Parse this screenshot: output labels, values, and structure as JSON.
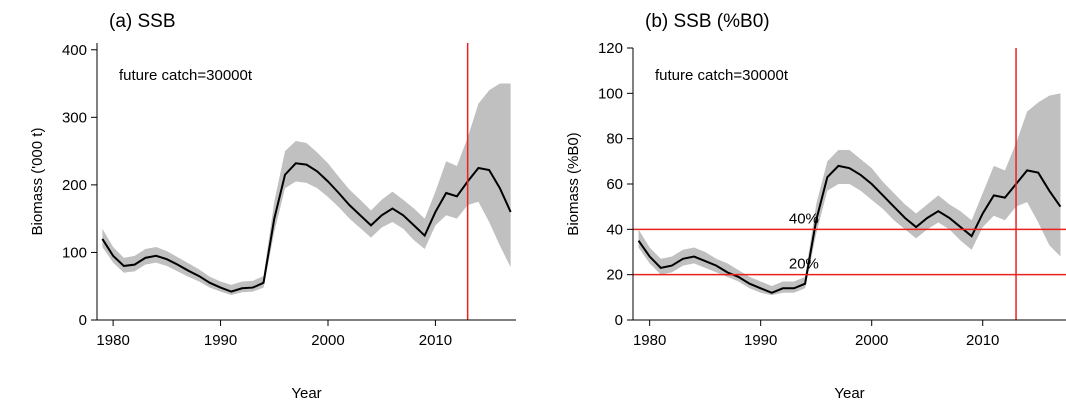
{
  "chart_data": [
    {
      "type": "line",
      "title": "(a) SSB",
      "xlabel": "Year",
      "ylabel": "Biomass ('000 t)",
      "annotation": "future catch=30000t",
      "x": [
        1979,
        1980,
        1981,
        1982,
        1983,
        1984,
        1985,
        1986,
        1987,
        1988,
        1989,
        1990,
        1991,
        1992,
        1993,
        1994,
        1995,
        1996,
        1997,
        1998,
        1999,
        2000,
        2001,
        2002,
        2003,
        2004,
        2005,
        2006,
        2007,
        2008,
        2009,
        2010,
        2011,
        2012,
        2013,
        2014,
        2015,
        2016,
        2017
      ],
      "series": [
        {
          "color": "#000000",
          "values": [
            120,
            95,
            80,
            82,
            92,
            95,
            90,
            82,
            73,
            65,
            55,
            48,
            42,
            47,
            48,
            55,
            150,
            215,
            232,
            230,
            220,
            205,
            188,
            170,
            155,
            140,
            155,
            165,
            155,
            140,
            125,
            160,
            188,
            183,
            205,
            225,
            222,
            195,
            160
          ]
        }
      ],
      "band": {
        "color": "#c0c0c0",
        "lower": [
          108,
          85,
          70,
          72,
          82,
          85,
          80,
          72,
          64,
          57,
          48,
          42,
          37,
          41,
          42,
          48,
          130,
          195,
          205,
          203,
          195,
          182,
          167,
          150,
          136,
          122,
          137,
          145,
          135,
          118,
          105,
          140,
          155,
          150,
          170,
          175,
          145,
          110,
          78
        ],
        "upper": [
          135,
          108,
          92,
          95,
          105,
          108,
          102,
          93,
          84,
          75,
          64,
          57,
          52,
          57,
          58,
          65,
          175,
          250,
          265,
          262,
          248,
          232,
          212,
          193,
          178,
          162,
          178,
          190,
          178,
          165,
          150,
          190,
          235,
          228,
          270,
          320,
          340,
          350,
          350
        ]
      },
      "vlines": [
        2013
      ],
      "ref_color": "#e8231f",
      "xlim": [
        1978.5,
        2017.5
      ],
      "xticks": [
        1980,
        1990,
        2000,
        2010
      ],
      "ylim": [
        0,
        410
      ],
      "yticks": [
        0,
        100,
        200,
        300,
        400
      ]
    },
    {
      "type": "line",
      "title": "(b) SSB (%B0)",
      "xlabel": "Year",
      "ylabel": "Biomass (%B0)",
      "annotation": "future catch=30000t",
      "x": [
        1979,
        1980,
        1981,
        1982,
        1983,
        1984,
        1985,
        1986,
        1987,
        1988,
        1989,
        1990,
        1991,
        1992,
        1993,
        1994,
        1995,
        1996,
        1997,
        1998,
        1999,
        2000,
        2001,
        2002,
        2003,
        2004,
        2005,
        2006,
        2007,
        2008,
        2009,
        2010,
        2011,
        2012,
        2013,
        2014,
        2015,
        2016,
        2017
      ],
      "series": [
        {
          "color": "#000000",
          "values": [
            35,
            28,
            23,
            24,
            27,
            28,
            26,
            24,
            21,
            19,
            16,
            14,
            12,
            14,
            14,
            16,
            44,
            63,
            68,
            67,
            64,
            60,
            55,
            50,
            45,
            41,
            45,
            48,
            45,
            41,
            37,
            47,
            55,
            54,
            60,
            66,
            65,
            57,
            50
          ]
        }
      ],
      "band": {
        "color": "#c0c0c0",
        "lower": [
          32,
          25,
          20,
          21,
          24,
          25,
          23,
          21,
          19,
          17,
          14,
          12,
          11,
          12,
          12,
          14,
          38,
          57,
          60,
          60,
          57,
          53,
          49,
          44,
          40,
          36,
          40,
          43,
          40,
          35,
          31,
          41,
          46,
          44,
          50,
          52,
          43,
          33,
          28
        ],
        "upper": [
          40,
          32,
          27,
          28,
          31,
          32,
          30,
          27,
          25,
          22,
          19,
          17,
          15,
          17,
          17,
          19,
          51,
          70,
          75,
          75,
          71,
          67,
          61,
          56,
          51,
          47,
          51,
          55,
          51,
          48,
          44,
          56,
          68,
          66,
          78,
          92,
          96,
          99,
          100
        ]
      },
      "vlines": [
        2013
      ],
      "hlines": [
        {
          "value": 40,
          "label": "40%"
        },
        {
          "value": 20,
          "label": "20%"
        }
      ],
      "ref_color": "#e8231f",
      "xlim": [
        1978.5,
        2017.5
      ],
      "xticks": [
        1980,
        1990,
        2000,
        2010
      ],
      "ylim": [
        0,
        120
      ],
      "yticks": [
        0,
        20,
        40,
        60,
        80,
        100,
        120
      ]
    }
  ]
}
